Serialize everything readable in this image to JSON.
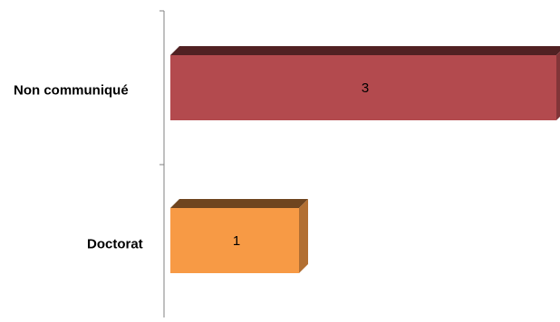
{
  "chart_data": {
    "type": "bar",
    "orientation": "horizontal",
    "style": "3d",
    "categories": [
      "Non communiqué",
      "Doctorat"
    ],
    "values": [
      3,
      1
    ],
    "data_labels": [
      "3",
      "1"
    ],
    "colors": [
      "#B34A4E",
      "#F79A45"
    ],
    "xlim": [
      0,
      3.05
    ],
    "grid": false,
    "legend": "none"
  }
}
